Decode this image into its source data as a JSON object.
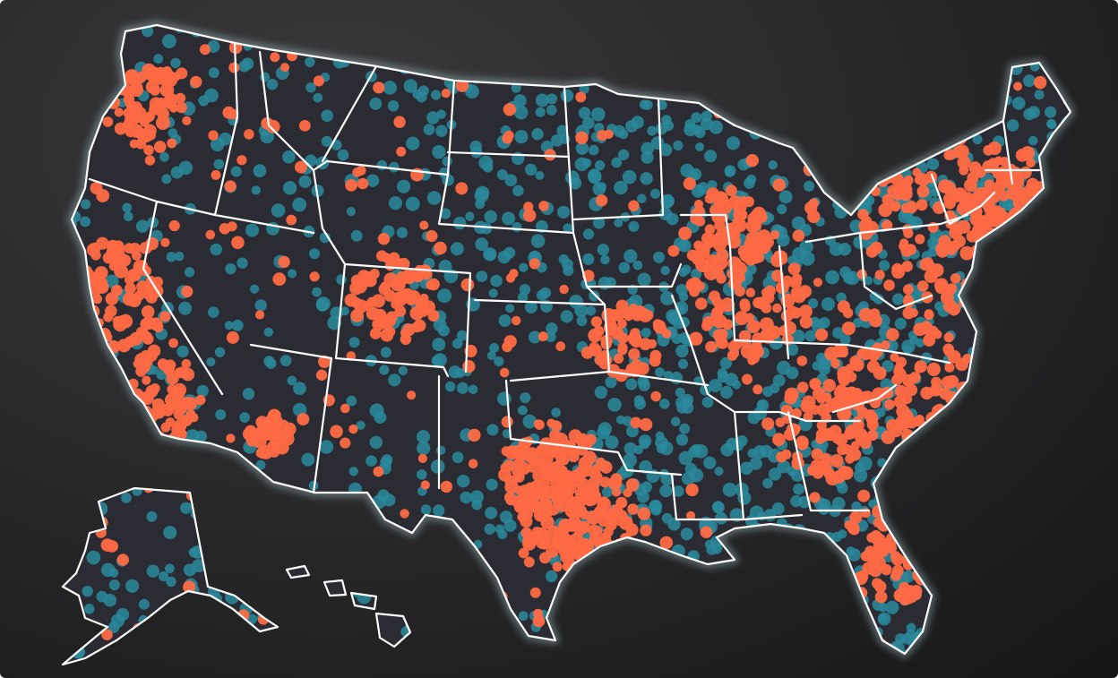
{
  "map": {
    "kind": "US dot density map",
    "colors": {
      "background": "#222224",
      "land": "#2b2b34",
      "borders": "#ffffff",
      "teal_dots": "#2a8a9c",
      "orange_dots": "#ff6a45"
    },
    "regions": [
      "contiguous-us",
      "alaska",
      "hawaii"
    ],
    "dot_categories": [
      "teal",
      "orange"
    ]
  }
}
